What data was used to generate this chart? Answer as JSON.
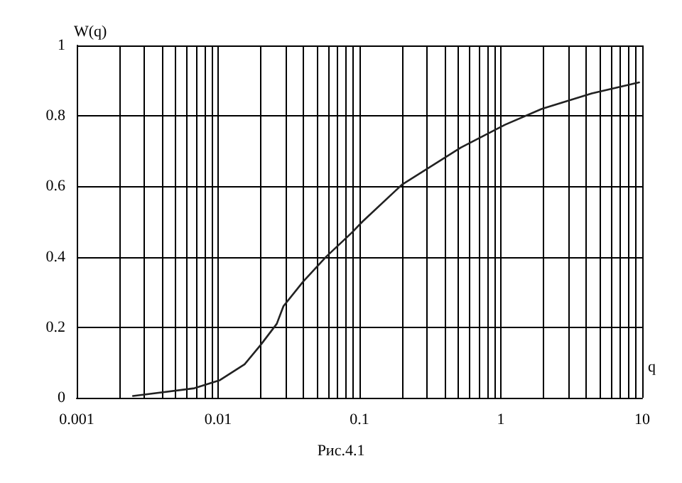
{
  "chart_data": {
    "type": "line",
    "xlabel": "q",
    "ylabel": "W(q)",
    "annotations": [
      "Рис.4.1"
    ],
    "x": [
      0.0025,
      0.0033,
      0.0068,
      0.0103,
      0.0154,
      0.02,
      0.026,
      0.029,
      0.04,
      0.058,
      0.089,
      0.105,
      0.2,
      0.52,
      1.07,
      1.95,
      4.4,
      9.5
    ],
    "series": [
      {
        "color": "#222222",
        "values": [
          0.005,
          0.011,
          0.027,
          0.05,
          0.095,
          0.15,
          0.21,
          0.26,
          0.33,
          0.4,
          0.47,
          0.5,
          0.605,
          0.71,
          0.775,
          0.82,
          0.864,
          0.895
        ]
      }
    ],
    "log": "x",
    "xlim": [
      0.001,
      10
    ],
    "xticks": [
      0.001,
      0.01,
      0.1,
      1,
      10
    ],
    "ylim": [
      0,
      1
    ],
    "yticks": [
      0,
      0.2,
      0.4,
      0.6,
      0.8,
      1
    ],
    "grid": true,
    "marker": "none",
    "line_style": "solid"
  }
}
